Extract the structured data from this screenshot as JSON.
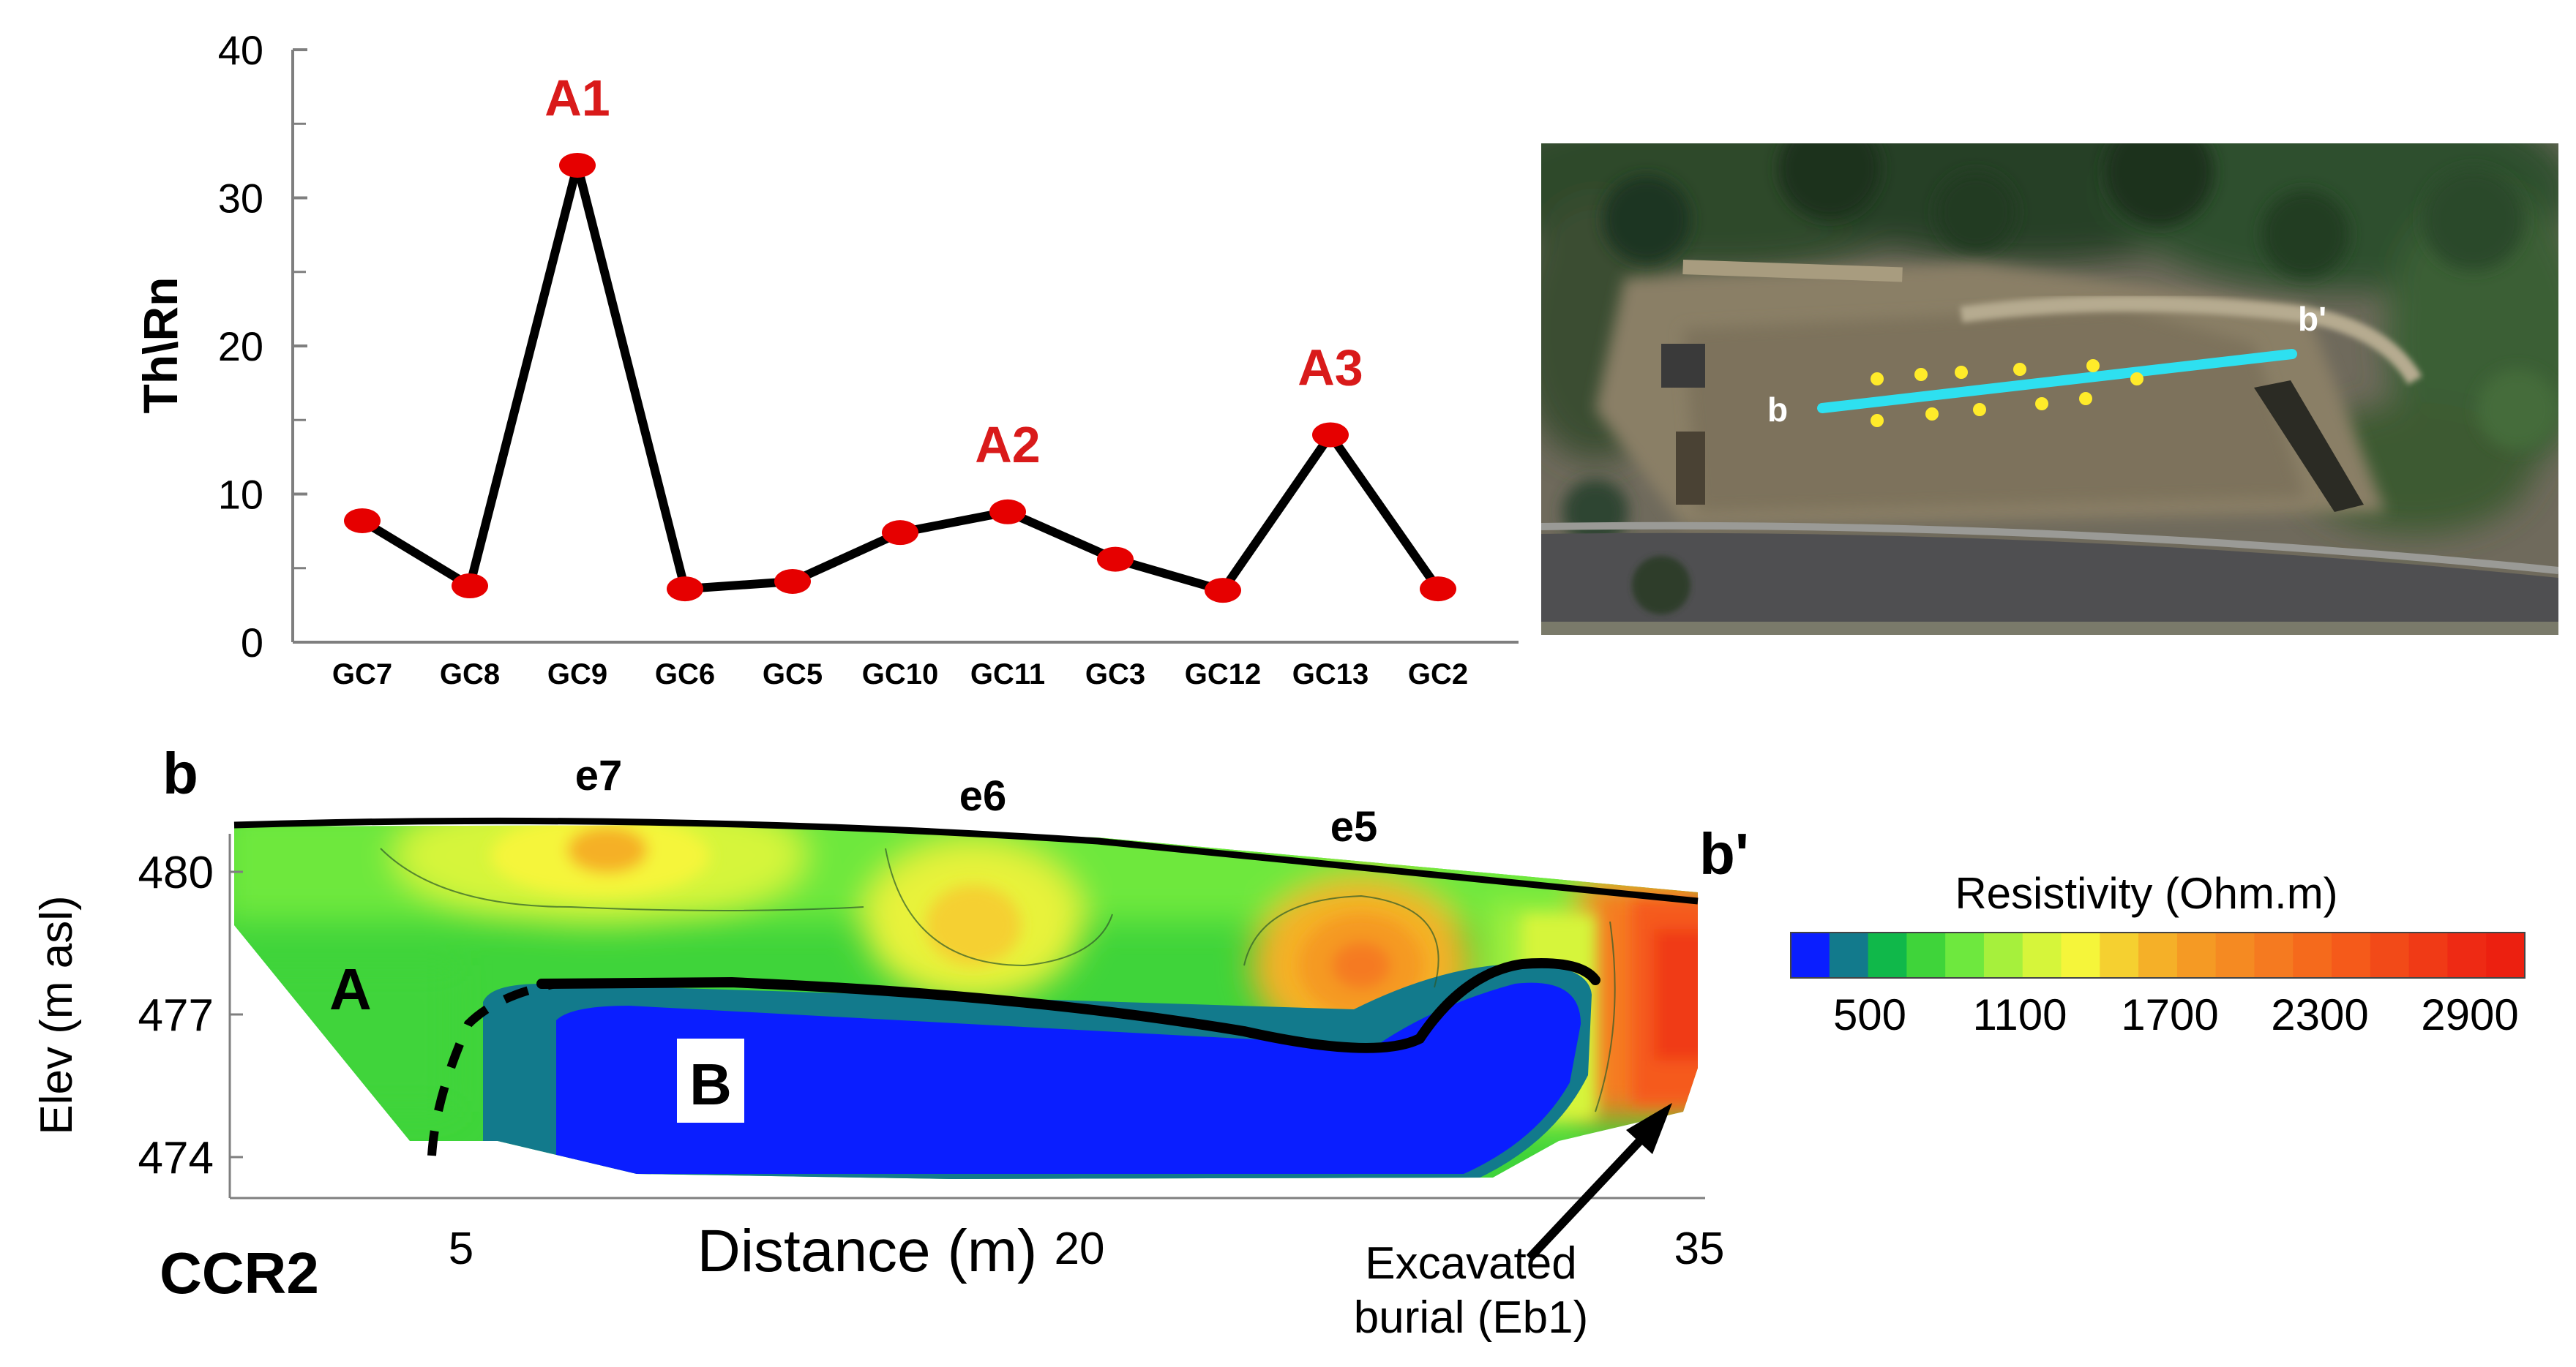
{
  "chart_data": [
    {
      "type": "line",
      "title": "",
      "xlabel": "",
      "ylabel": "Th\\Rn",
      "ylim": [
        0,
        40
      ],
      "yticks": [
        0,
        10,
        20,
        30,
        40
      ],
      "categories": [
        "GC7",
        "GC8",
        "GC9",
        "GC6",
        "GC5",
        "GC10",
        "GC11",
        "GC3",
        "GC12",
        "GC13",
        "GC2"
      ],
      "series": [
        {
          "values": [
            8.2,
            3.8,
            32.2,
            3.6,
            4.1,
            7.4,
            8.8,
            5.6,
            3.5,
            14.0,
            3.6
          ]
        }
      ],
      "annotations": [
        {
          "label": "A1",
          "category": "GC9"
        },
        {
          "label": "A2",
          "category": "GC11"
        },
        {
          "label": "A3",
          "category": "GC13"
        }
      ],
      "grid": false,
      "legend": "none",
      "colors": {
        "marker": "#e60000",
        "line": "#000000",
        "annotation": "#d91a1a"
      }
    },
    {
      "type": "heatmap",
      "title": "",
      "profile_name": "CCR2",
      "xlabel": "Distance (m)",
      "ylabel": "Elev (m asl)",
      "xticks": [
        5,
        20,
        35
      ],
      "yticks": [
        474,
        477,
        480
      ],
      "ylim": [
        473,
        481
      ],
      "profile_start_label": "b",
      "profile_end_label": "b'",
      "electrode_labels": [
        "e7",
        "e6",
        "e5"
      ],
      "zone_labels": [
        "A",
        "B"
      ],
      "annotation": "Excavated\nburial (Eb1)",
      "colorbar": {
        "title": "Resistivity (Ohm.m)",
        "tick_labels": [
          "500",
          "1100",
          "1700",
          "2300",
          "2900"
        ],
        "colors": [
          "#0a1eff",
          "#127a8c",
          "#10b84a",
          "#3fd43a",
          "#6ee83e",
          "#a6f03c",
          "#d6f53a",
          "#f5f53a",
          "#f5d030",
          "#f5b028",
          "#f59a24",
          "#f58a22",
          "#f57a20",
          "#f56a1c",
          "#f55a1a",
          "#f24a18",
          "#f03a16",
          "#ee2a14",
          "#ec2010"
        ]
      }
    }
  ],
  "map_panel": {
    "labels": [
      "b",
      "b'"
    ],
    "colors": {
      "profile_line": "#2ee0f0",
      "points": "#ffeb2a"
    }
  }
}
